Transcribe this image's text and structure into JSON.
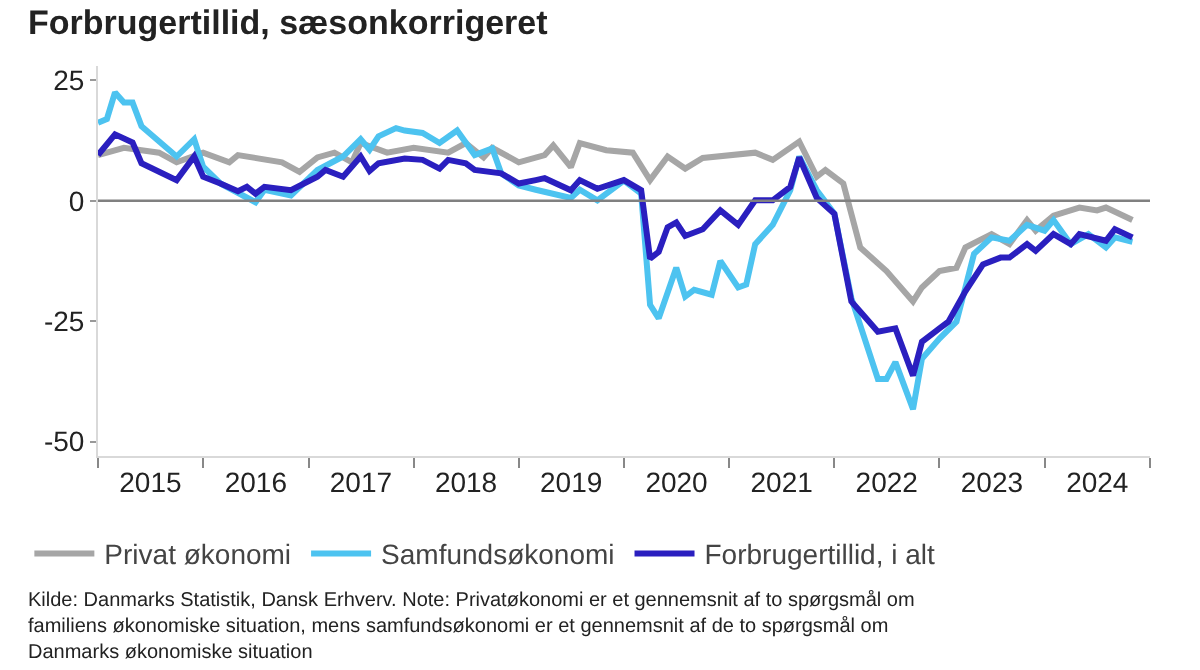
{
  "chart_data": {
    "type": "line",
    "title": "Forbrugertillid, sæsonkorrigeret",
    "xlim": [
      "2015-01-01",
      "2025-01-01"
    ],
    "xticks": [
      {
        "value": "2015-01-01",
        "label": null
      },
      {
        "value": "2015-07-02",
        "label": "2015"
      },
      {
        "value": "2016-01-01",
        "label": null
      },
      {
        "value": "2016-07-02",
        "label": "2016"
      },
      {
        "value": "2017-01-01",
        "label": null
      },
      {
        "value": "2017-07-02",
        "label": "2017"
      },
      {
        "value": "2018-01-01",
        "label": null
      },
      {
        "value": "2018-07-02",
        "label": "2018"
      },
      {
        "value": "2019-01-01",
        "label": null
      },
      {
        "value": "2019-07-02",
        "label": "2019"
      },
      {
        "value": "2020-01-01",
        "label": null
      },
      {
        "value": "2020-07-02",
        "label": "2020"
      },
      {
        "value": "2021-01-01",
        "label": null
      },
      {
        "value": "2021-07-02",
        "label": "2021"
      },
      {
        "value": "2022-01-01",
        "label": null
      },
      {
        "value": "2022-07-02",
        "label": "2022"
      },
      {
        "value": "2023-01-01",
        "label": null
      },
      {
        "value": "2023-07-02",
        "label": "2023"
      },
      {
        "value": "2024-01-01",
        "label": null
      },
      {
        "value": "2024-07-02",
        "label": "2024"
      },
      {
        "value": "2025-01-01",
        "label": null
      }
    ],
    "ylim": [
      -53,
      28
    ],
    "yticks": [
      -50,
      -25,
      0,
      25
    ],
    "grid": false,
    "legend": "bottom",
    "marker": "none",
    "line_style": "solid",
    "ref_lines": [
      {
        "axis": "y",
        "value": 0,
        "label": null,
        "color": "#808080"
      }
    ],
    "series": [
      {
        "name": "Privat økonomi",
        "color": "#a6a6a6",
        "x": [
          "2015-01",
          "2015-04",
          "2015-08",
          "2015-10",
          "2016-01",
          "2016-04",
          "2016-05",
          "2016-10",
          "2016-12",
          "2017-02",
          "2017-04",
          "2017-06",
          "2017-07",
          "2017-10",
          "2018-01",
          "2018-05",
          "2018-07",
          "2018-09",
          "2018-10",
          "2019-01",
          "2019-04",
          "2019-05",
          "2019-07",
          "2019-08",
          "2019-11",
          "2020-02",
          "2020-04",
          "2020-06",
          "2020-08",
          "2020-10",
          "2021-04",
          "2021-06",
          "2021-09",
          "2021-11",
          "2021-12",
          "2022-02",
          "2022-04",
          "2022-07",
          "2022-10",
          "2022-11",
          "2023-01",
          "2023-03",
          "2023-04",
          "2023-07",
          "2023-09",
          "2023-11",
          "2023-12",
          "2024-02",
          "2024-05",
          "2024-07",
          "2024-08",
          "2024-11"
        ],
        "values": [
          9.5,
          11,
          10,
          8,
          10,
          8,
          9.5,
          8,
          6,
          9,
          10,
          8,
          12,
          10,
          11,
          10,
          12,
          9,
          11,
          8,
          9.5,
          11.5,
          7,
          12,
          10.5,
          10,
          4.3,
          9.2,
          6.7,
          8.9,
          10,
          8.5,
          12.3,
          5,
          6.4,
          3.6,
          -9.7,
          -14.6,
          -20.9,
          -18,
          -14.6,
          -13.9,
          -9.7,
          -6.9,
          -9,
          -4,
          -6.2,
          -3.1,
          -1.4,
          -2,
          -1.4,
          -4
        ]
      },
      {
        "name": "Samfundsøkonomi",
        "color": "#4dc3f0",
        "x": [
          "2015-01",
          "2015-02",
          "2015-03",
          "2015-04",
          "2015-05",
          "2015-06",
          "2015-10",
          "2015-12",
          "2016-01",
          "2016-03",
          "2016-07",
          "2016-08",
          "2016-11",
          "2017-02",
          "2017-05",
          "2017-07",
          "2017-08",
          "2017-09",
          "2017-11",
          "2017-12",
          "2018-02",
          "2018-04",
          "2018-06",
          "2018-08",
          "2018-10",
          "2018-11",
          "2019-01",
          "2019-03",
          "2019-07",
          "2019-08",
          "2019-10",
          "2020-01",
          "2020-03",
          "2020-04",
          "2020-05",
          "2020-07",
          "2020-08",
          "2020-09",
          "2020-11",
          "2020-12",
          "2021-02",
          "2021-03",
          "2021-04",
          "2021-06",
          "2021-08",
          "2021-09",
          "2021-11",
          "2022-01",
          "2022-03",
          "2022-06",
          "2022-07",
          "2022-08",
          "2022-10",
          "2022-11",
          "2023-01",
          "2023-03",
          "2023-04",
          "2023-05",
          "2023-07",
          "2023-09",
          "2023-11",
          "2024-01",
          "2024-02",
          "2024-04",
          "2024-06",
          "2024-08",
          "2024-09",
          "2024-11"
        ],
        "values": [
          16.2,
          17,
          22.5,
          20.4,
          20.4,
          15.5,
          9.2,
          12.8,
          7.1,
          3.6,
          -0.3,
          2.3,
          1.1,
          6.4,
          9.2,
          12.8,
          10.6,
          13.4,
          15.1,
          14.6,
          14.1,
          12,
          14.6,
          9.5,
          10.9,
          5.7,
          3.2,
          2.3,
          0.6,
          2.3,
          0.1,
          4.2,
          1.5,
          -21.6,
          -24.4,
          -13.9,
          -19.9,
          -18.5,
          -19.5,
          -12.5,
          -18,
          -17.4,
          -9,
          -5,
          2.2,
          9.2,
          2.2,
          -2.7,
          -20.2,
          -37,
          -37,
          -33.5,
          -43.3,
          -32.8,
          -28.6,
          -25.1,
          -18,
          -11,
          -7.6,
          -8.3,
          -5,
          -6.2,
          -4,
          -9,
          -6.9,
          -9.7,
          -7.6,
          -8.5
        ]
      },
      {
        "name": "Forbrugertillid, i alt",
        "color": "#2a1fbf",
        "x": [
          "2015-01",
          "2015-03",
          "2015-05",
          "2015-06",
          "2015-10",
          "2015-12",
          "2016-01",
          "2016-03",
          "2016-05",
          "2016-06",
          "2016-07",
          "2016-08",
          "2016-11",
          "2017-02",
          "2017-03",
          "2017-05",
          "2017-07",
          "2017-08",
          "2017-09",
          "2017-12",
          "2018-02",
          "2018-04",
          "2018-05",
          "2018-07",
          "2018-08",
          "2018-11",
          "2019-01",
          "2019-03",
          "2019-04",
          "2019-07",
          "2019-08",
          "2019-10",
          "2020-01",
          "2020-03",
          "2020-04",
          "2020-05",
          "2020-06",
          "2020-07",
          "2020-08",
          "2020-10",
          "2020-12",
          "2021-02",
          "2021-04",
          "2021-06",
          "2021-08",
          "2021-09",
          "2021-11",
          "2022-01",
          "2022-03",
          "2022-06",
          "2022-08",
          "2022-10",
          "2022-11",
          "2023-01",
          "2023-02",
          "2023-04",
          "2023-06",
          "2023-08",
          "2023-09",
          "2023-11",
          "2023-12",
          "2024-02",
          "2024-04",
          "2024-05",
          "2024-08",
          "2024-09",
          "2024-11"
        ],
        "values": [
          9.5,
          13.8,
          12.1,
          7.8,
          4.3,
          9.2,
          5,
          3.6,
          2,
          2.9,
          1.5,
          2.9,
          2.2,
          5,
          6.4,
          5,
          9.2,
          6.2,
          7.8,
          8.8,
          8.5,
          6.7,
          8.5,
          7.8,
          6.4,
          5.7,
          3.6,
          4.3,
          4.7,
          2.2,
          4.3,
          2.5,
          4.3,
          2.2,
          -12,
          -10.6,
          -5.5,
          -4.5,
          -7.3,
          -5.9,
          -2,
          -5,
          0.1,
          0.1,
          2.9,
          9,
          0.6,
          -2.7,
          -20.9,
          -27.2,
          -26.5,
          -36.3,
          -29.3,
          -26.5,
          -25.1,
          -18.8,
          -13.2,
          -11.8,
          -11.8,
          -9,
          -10.4,
          -6.9,
          -9,
          -6.9,
          -8.3,
          -5.9,
          -7.6
        ]
      }
    ],
    "annotations": [
      "Kilde: Danmarks Statistik, Dansk Erhverv. Note: Privatøkonomi er et gennemsnit af to spørgsmål om familiens økonomiske situation, mens samfundsøkonomi er et gennemsnit af de to spørgsmål om Danmarks økonomiske situation"
    ]
  }
}
